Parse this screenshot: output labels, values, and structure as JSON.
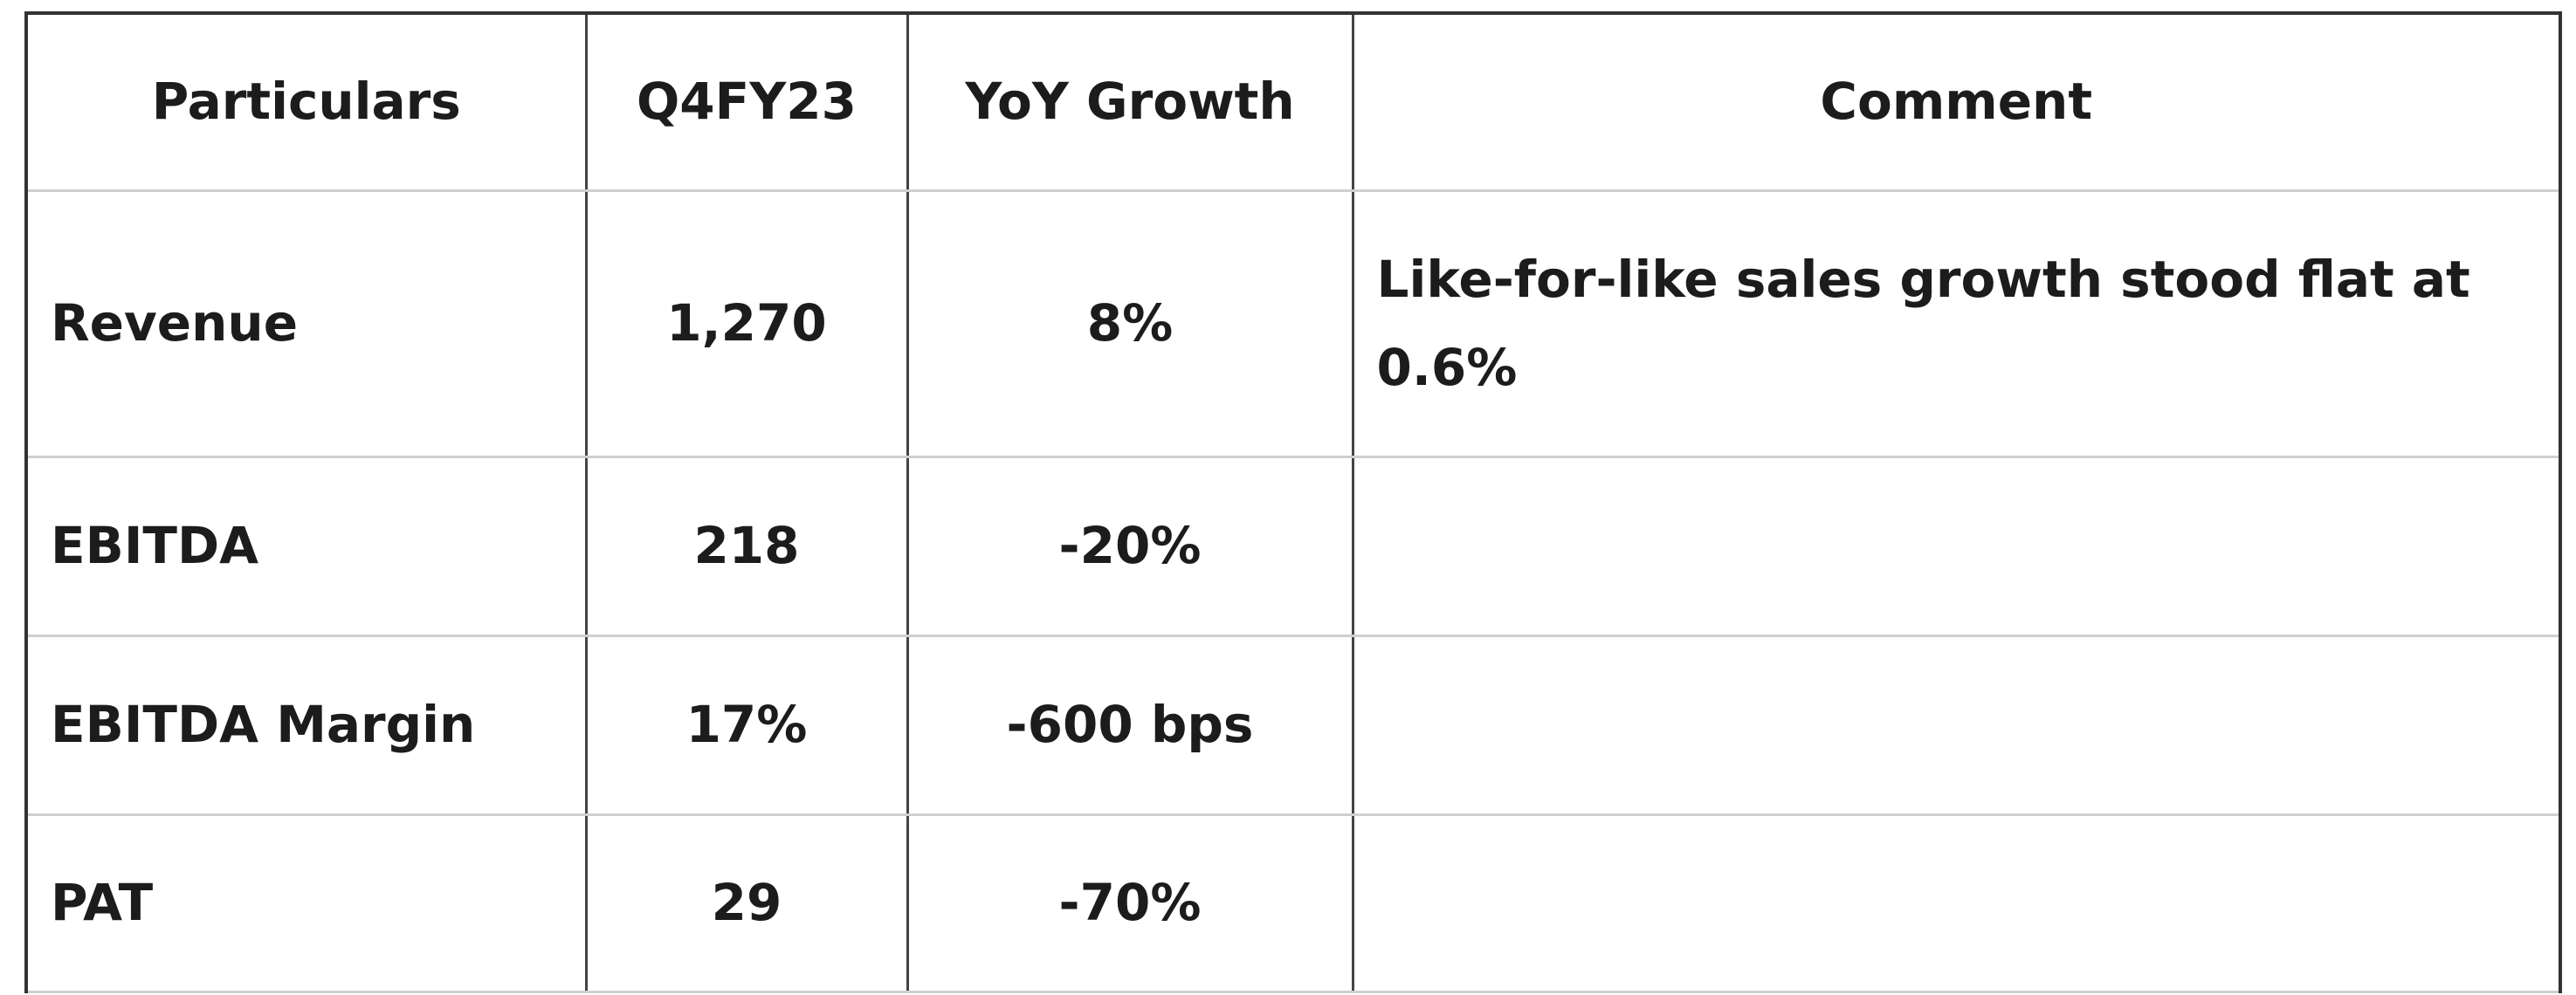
{
  "table": {
    "header": [
      "Particulars",
      "Q4FY23",
      "YoY Growth",
      "Comment"
    ],
    "rows": [
      [
        "Revenue",
        "1,270",
        "8%",
        "Like-for-like sales growth stood flat at 0.6%"
      ],
      [
        "EBITDA",
        "218",
        "-20%"
      ],
      [
        "EBITDA Margin",
        "17%",
        "-600 bps"
      ],
      [
        "PAT",
        "29",
        "-70%"
      ]
    ]
  }
}
